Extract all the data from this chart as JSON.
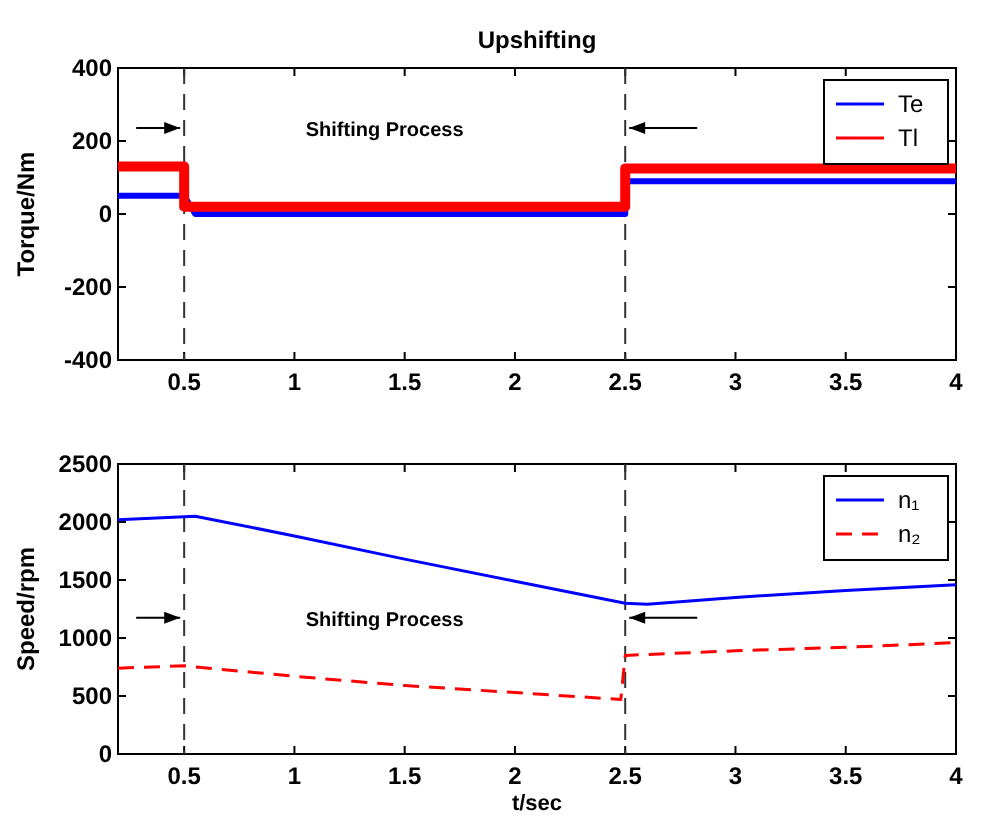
{
  "chart_data": [
    {
      "type": "line",
      "title": "Upshifting",
      "ylabel": "Torque/Nm",
      "xlim": [
        0.2,
        4
      ],
      "xticks": [
        0.5,
        1,
        1.5,
        2,
        2.5,
        3,
        3.5,
        4
      ],
      "ylim": [
        -400,
        400
      ],
      "yticks": [
        -400,
        -200,
        0,
        200,
        400
      ],
      "legend": "top right",
      "grid": false,
      "series": [
        {
          "name": "Te",
          "color": "#0000ff",
          "x": [
            0.2,
            0.5,
            0.55,
            2.5,
            2.5,
            4
          ],
          "values": [
            50,
            50,
            0,
            0,
            90,
            90
          ]
        },
        {
          "name": "Tl",
          "color": "#ff0000",
          "x": [
            0.2,
            0.5,
            0.5,
            2.5,
            2.5,
            4
          ],
          "values": [
            130,
            130,
            20,
            20,
            125,
            125
          ]
        }
      ],
      "ref_lines": [
        {
          "axis": "x",
          "value": 0.5,
          "line_style": "dashed"
        },
        {
          "axis": "x",
          "value": 2.5,
          "line_style": "dashed"
        }
      ],
      "annotations": [
        "Shifting Process"
      ]
    },
    {
      "type": "line",
      "xlabel": "t/sec",
      "ylabel": "Speed/rpm",
      "xlim": [
        0.2,
        4
      ],
      "xticks": [
        0.5,
        1,
        1.5,
        2,
        2.5,
        3,
        3.5,
        4
      ],
      "ylim": [
        0,
        2500
      ],
      "yticks": [
        0,
        500,
        1000,
        1500,
        2000,
        2500
      ],
      "legend": "top right",
      "grid": false,
      "series": [
        {
          "name": "n₁",
          "color": "#0000ff",
          "line_style": "solid",
          "x": [
            0.2,
            0.55,
            1,
            1.5,
            2,
            2.5,
            2.6,
            3,
            3.5,
            4
          ],
          "values": [
            2020,
            2050,
            1880,
            1680,
            1490,
            1300,
            1290,
            1350,
            1410,
            1460
          ]
        },
        {
          "name": "n₂",
          "color": "#ff0000",
          "line_style": "dashed",
          "x": [
            0.2,
            0.5,
            1,
            1.5,
            2,
            2.48,
            2.5,
            3,
            3.5,
            4
          ],
          "values": [
            740,
            760,
            670,
            590,
            530,
            470,
            850,
            890,
            920,
            960
          ]
        }
      ],
      "ref_lines": [
        {
          "axis": "x",
          "value": 0.5,
          "line_style": "dashed"
        },
        {
          "axis": "x",
          "value": 2.5,
          "line_style": "dashed"
        }
      ],
      "annotations": [
        "Shifting Process"
      ]
    }
  ]
}
